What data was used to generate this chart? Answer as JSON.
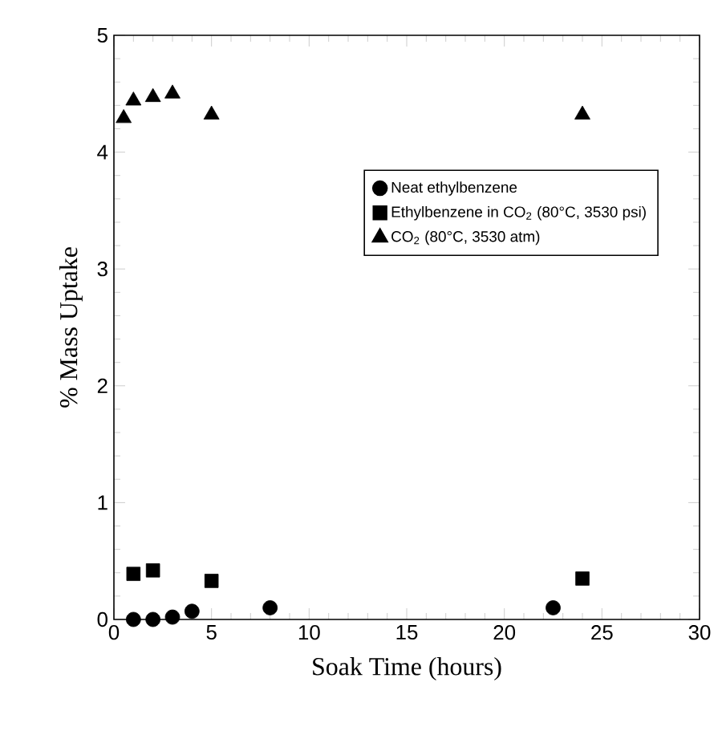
{
  "chart_data": {
    "type": "scatter",
    "xlabel": "Soak Time (hours)",
    "ylabel": "% Mass Uptake",
    "series": [
      {
        "name": "Neat ethylbenzene",
        "color": "#000000",
        "marker": "circle",
        "x": [
          1,
          2,
          3,
          4,
          8,
          22.5
        ],
        "values": [
          0,
          0,
          0.02,
          0.07,
          0.1,
          0.1
        ]
      },
      {
        "name": "Ethylbenzene in CO$_{2}$ (80°C, 3530 psi)",
        "color": "#000000",
        "marker": "square",
        "x": [
          1,
          2,
          5,
          24
        ],
        "values": [
          0.39,
          0.42,
          0.33,
          0.35
        ]
      },
      {
        "name": "CO$_{2}$ (80°C, 3530 atm)",
        "color": "#000000",
        "marker": "triangle",
        "x": [
          0.5,
          1,
          2,
          3,
          5,
          24
        ],
        "values": [
          4.29,
          4.44,
          4.47,
          4.5,
          4.32,
          4.32
        ]
      }
    ],
    "xlim": [
      0,
      30
    ],
    "ylim": [
      0,
      5
    ],
    "xticks": [
      0,
      5,
      10,
      15,
      20,
      25,
      30
    ],
    "yticks": [
      0,
      1,
      2,
      3,
      4,
      5
    ],
    "grid": false,
    "legend": "right"
  }
}
